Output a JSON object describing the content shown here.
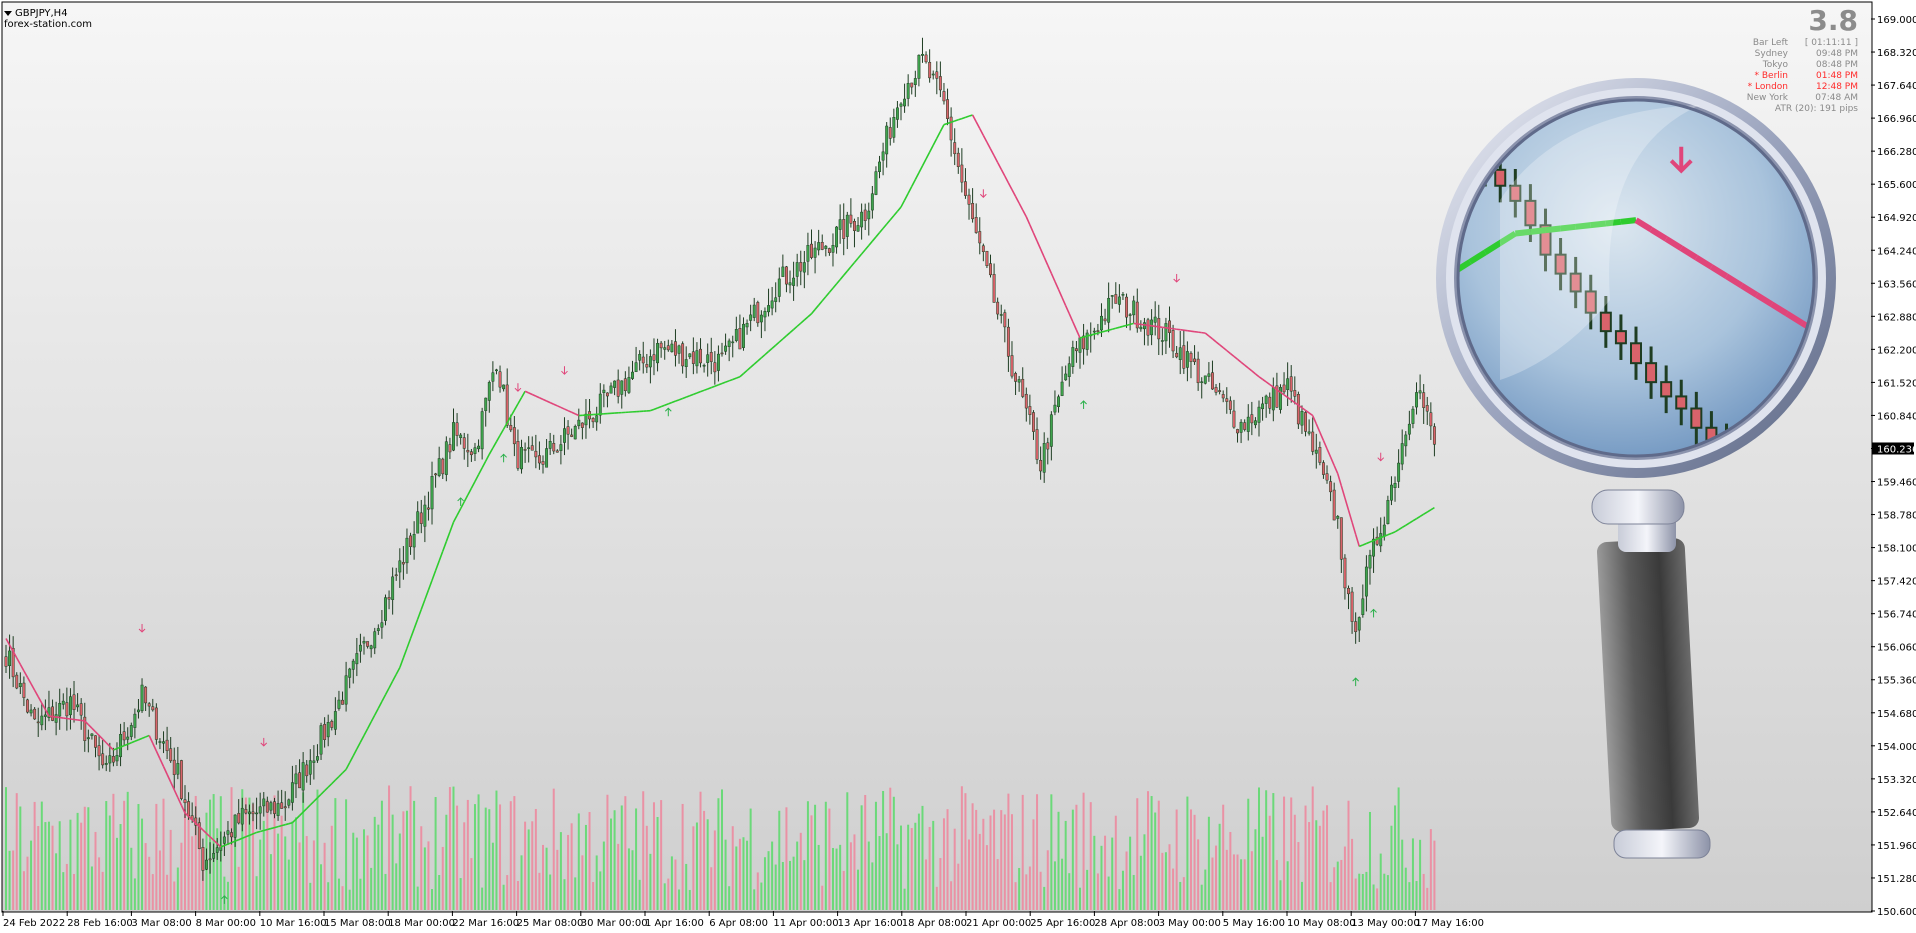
{
  "header": {
    "symbol": "GBPJPY,H4",
    "source": "forex-station.com"
  },
  "info_panel": {
    "spread": "3.8",
    "rows": [
      {
        "label": "Bar Left",
        "value": "[ 01:11:11 ]",
        "highlight": false
      },
      {
        "label": "Sydney",
        "value": "09:48 PM",
        "highlight": false
      },
      {
        "label": "Tokyo",
        "value": "08:48 PM",
        "highlight": false
      },
      {
        "label": "* Berlin",
        "value": "01:48 PM",
        "highlight": true
      },
      {
        "label": "* London",
        "value": "12:48 PM",
        "highlight": true
      },
      {
        "label": "New York",
        "value": "07:48 AM",
        "highlight": false
      }
    ],
    "atr": "ATR (20): 191 pips"
  },
  "colors": {
    "bull_candle": "#3fa34d",
    "bear_candle": "#d9636b",
    "ma_up": "#2ecc2e",
    "ma_down": "#e0457a",
    "volume_up": "#5fd96f",
    "volume_down": "#ec8a9f",
    "current_price_bg": "#000000"
  },
  "chart_data": {
    "type": "candlestick",
    "title": "",
    "ylim": [
      150.6,
      169.0
    ],
    "y_ticks": [
      "169.000",
      "168.320",
      "167.640",
      "166.960",
      "166.280",
      "165.600",
      "164.920",
      "164.240",
      "163.560",
      "162.880",
      "162.200",
      "161.520",
      "160.840",
      "160.236",
      "159.460",
      "158.780",
      "158.100",
      "157.420",
      "156.740",
      "156.060",
      "155.360",
      "154.680",
      "154.000",
      "153.320",
      "152.640",
      "151.960",
      "151.280",
      "150.600"
    ],
    "current_price": "160.236",
    "x_ticks": [
      "24 Feb 2022",
      "28 Feb 16:00",
      "3 Mar 08:00",
      "8 Mar 00:00",
      "10 Mar 16:00",
      "15 Mar 08:00",
      "18 Mar 00:00",
      "22 Mar 16:00",
      "25 Mar 08:00",
      "30 Mar 00:00",
      "1 Apr 16:00",
      "6 Apr 08:00",
      "11 Apr 00:00",
      "13 Apr 16:00",
      "18 Apr 08:00",
      "21 Apr 00:00",
      "25 Apr 16:00",
      "28 Apr 08:00",
      "3 May 00:00",
      "5 May 16:00",
      "10 May 08:00",
      "13 May 00:00",
      "17 May 16:00"
    ],
    "close_path": [
      {
        "i": 0,
        "v": 155.9
      },
      {
        "i": 8,
        "v": 154.4
      },
      {
        "i": 18,
        "v": 154.9
      },
      {
        "i": 28,
        "v": 153.4
      },
      {
        "i": 38,
        "v": 155.0
      },
      {
        "i": 48,
        "v": 153.4
      },
      {
        "i": 55,
        "v": 151.6
      },
      {
        "i": 66,
        "v": 152.5
      },
      {
        "i": 78,
        "v": 152.8
      },
      {
        "i": 90,
        "v": 154.4
      },
      {
        "i": 105,
        "v": 156.8
      },
      {
        "i": 120,
        "v": 159.5
      },
      {
        "i": 125,
        "v": 160.4
      },
      {
        "i": 131,
        "v": 160.1
      },
      {
        "i": 137,
        "v": 162.0
      },
      {
        "i": 142,
        "v": 160.0
      },
      {
        "i": 148,
        "v": 159.8
      },
      {
        "i": 165,
        "v": 160.9
      },
      {
        "i": 182,
        "v": 162.2
      },
      {
        "i": 200,
        "v": 161.9
      },
      {
        "i": 215,
        "v": 163.5
      },
      {
        "i": 240,
        "v": 165.0
      },
      {
        "i": 250,
        "v": 167.5
      },
      {
        "i": 256,
        "v": 168.1
      },
      {
        "i": 262,
        "v": 167.2
      },
      {
        "i": 268,
        "v": 165.3
      },
      {
        "i": 280,
        "v": 162.1
      },
      {
        "i": 289,
        "v": 159.8
      },
      {
        "i": 297,
        "v": 161.9
      },
      {
        "i": 310,
        "v": 163.2
      },
      {
        "i": 325,
        "v": 162.4
      },
      {
        "i": 345,
        "v": 160.6
      },
      {
        "i": 358,
        "v": 161.4
      },
      {
        "i": 365,
        "v": 160.1
      },
      {
        "i": 372,
        "v": 158.6
      },
      {
        "i": 376,
        "v": 156.3
      },
      {
        "i": 382,
        "v": 158.0
      },
      {
        "i": 388,
        "v": 159.6
      },
      {
        "i": 394,
        "v": 161.5
      },
      {
        "i": 399,
        "v": 160.2
      }
    ],
    "ma_path": [
      {
        "i": 0,
        "v": 156.2
      },
      {
        "i": 12,
        "v": 154.6
      },
      {
        "i": 22,
        "v": 154.5
      },
      {
        "i": 30,
        "v": 153.9
      },
      {
        "i": 40,
        "v": 154.2
      },
      {
        "i": 50,
        "v": 152.6
      },
      {
        "i": 60,
        "v": 151.9
      },
      {
        "i": 70,
        "v": 152.2
      },
      {
        "i": 80,
        "v": 152.4
      },
      {
        "i": 95,
        "v": 153.5
      },
      {
        "i": 110,
        "v": 155.6
      },
      {
        "i": 125,
        "v": 158.6
      },
      {
        "i": 135,
        "v": 160.0
      },
      {
        "i": 145,
        "v": 161.3
      },
      {
        "i": 160,
        "v": 160.8
      },
      {
        "i": 180,
        "v": 160.9
      },
      {
        "i": 205,
        "v": 161.6
      },
      {
        "i": 225,
        "v": 162.9
      },
      {
        "i": 250,
        "v": 165.1
      },
      {
        "i": 262,
        "v": 166.8
      },
      {
        "i": 270,
        "v": 167.0
      },
      {
        "i": 285,
        "v": 164.9
      },
      {
        "i": 300,
        "v": 162.4
      },
      {
        "i": 315,
        "v": 162.7
      },
      {
        "i": 335,
        "v": 162.5
      },
      {
        "i": 350,
        "v": 161.6
      },
      {
        "i": 365,
        "v": 160.8
      },
      {
        "i": 372,
        "v": 159.6
      },
      {
        "i": 378,
        "v": 158.1
      },
      {
        "i": 388,
        "v": 158.4
      },
      {
        "i": 399,
        "v": 158.9
      }
    ],
    "arrows": [
      {
        "i": 38,
        "dir": "down"
      },
      {
        "i": 61,
        "dir": "up"
      },
      {
        "i": 72,
        "dir": "down"
      },
      {
        "i": 127,
        "dir": "up"
      },
      {
        "i": 139,
        "dir": "up"
      },
      {
        "i": 143,
        "dir": "down"
      },
      {
        "i": 156,
        "dir": "down"
      },
      {
        "i": 185,
        "dir": "up"
      },
      {
        "i": 273,
        "dir": "down"
      },
      {
        "i": 301,
        "dir": "up"
      },
      {
        "i": 327,
        "dir": "down"
      },
      {
        "i": 377,
        "dir": "up"
      },
      {
        "i": 382,
        "dir": "up"
      },
      {
        "i": 384,
        "dir": "down"
      }
    ],
    "bar_count": 400
  }
}
